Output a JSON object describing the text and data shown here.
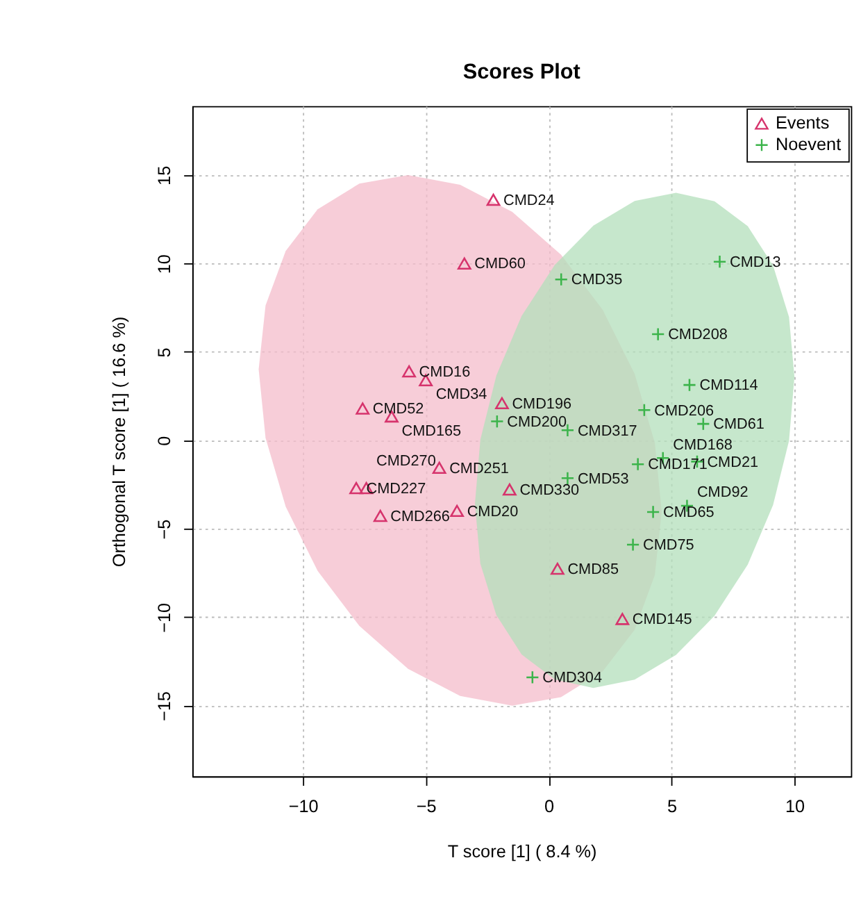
{
  "chart_data": {
    "type": "scatter",
    "title": "Scores Plot",
    "xlabel": "T score [1] ( 8.4 %)",
    "ylabel": "Orthogonal T score [1] ( 16.6 %)",
    "xlim": [
      -14.5,
      12.3
    ],
    "ylim": [
      -19,
      18.9
    ],
    "xticks": [
      -10,
      -5,
      0,
      5,
      10
    ],
    "yticks": [
      -15,
      -10,
      -5,
      0,
      5,
      10,
      15
    ],
    "grid": true,
    "legend": "top right",
    "series": [
      {
        "type": "area",
        "color": "#f4bccb",
        "x": [
          -11.8,
          -11.52,
          -10.7,
          -9.4,
          -7.7,
          -5.72,
          -3.6,
          -1.48,
          0.5,
          2.2,
          3.5,
          4.32,
          4.6,
          4.32,
          3.5,
          2.2,
          0.5,
          -1.48,
          -3.6,
          -5.72,
          -7.7,
          -9.4,
          -10.7,
          -11.52
        ],
        "values": [
          4.02,
          7.62,
          10.71,
          13.06,
          14.52,
          15.0,
          14.45,
          12.92,
          10.5,
          7.38,
          3.75,
          -0.14,
          -4.02,
          -7.62,
          -10.71,
          -13.06,
          -14.52,
          -15.0,
          -14.45,
          -12.92,
          -10.5,
          -7.38,
          -3.75,
          0.14
        ]
      },
      {
        "type": "area",
        "color": "#b3dfbb",
        "x": [
          -3.0,
          -2.78,
          -2.13,
          -1.1,
          0.25,
          1.82,
          3.5,
          5.18,
          6.75,
          8.1,
          9.13,
          9.78,
          10.0,
          9.78,
          9.13,
          8.1,
          6.75,
          5.18,
          3.5,
          1.82,
          0.25,
          -1.1,
          -2.13,
          -2.78
        ],
        "values": [
          -3.59,
          0.03,
          3.66,
          7.03,
          9.92,
          12.14,
          13.53,
          14.0,
          13.52,
          12.11,
          9.88,
          6.97,
          3.59,
          -0.03,
          -3.66,
          -7.03,
          -9.92,
          -12.14,
          -13.53,
          -14.0,
          -13.52,
          -12.11,
          -9.88,
          -6.97
        ]
      },
      {
        "name": "Events",
        "color": "#d6336c",
        "marker": "triangle",
        "x": [
          -2.25,
          -3.43,
          -5.68,
          -5.0,
          -7.57,
          -6.39,
          -1.9,
          -4.45,
          -7.83,
          -7.42,
          -6.85,
          -3.73,
          -1.59,
          0.36,
          3.0
        ],
        "values": [
          13.6,
          10.0,
          3.9,
          3.4,
          1.8,
          1.35,
          2.1,
          -1.55,
          -2.7,
          -2.7,
          -4.27,
          -3.99,
          -2.78,
          -7.26,
          -10.1
        ]
      },
      {
        "name": "Noevent",
        "color": "#3cb44b",
        "marker": "cross",
        "x": [
          0.51,
          6.96,
          4.45,
          5.73,
          3.89,
          6.29,
          -2.1,
          0.77,
          0.77,
          3.63,
          4.65,
          6.04,
          4.25,
          5.63,
          3.43,
          -0.66
        ],
        "values": [
          9.1,
          10.1,
          6.0,
          3.13,
          1.71,
          0.93,
          1.07,
          0.57,
          -2.14,
          -1.35,
          -1.0,
          -1.2,
          -4.05,
          -3.7,
          -5.9,
          -13.4
        ]
      }
    ],
    "annotations": [
      {
        "text": "CMD24",
        "x": -2.25,
        "y": 13.6
      },
      {
        "text": "CMD60",
        "x": -3.43,
        "y": 10.0
      },
      {
        "text": "CMD16",
        "x": -5.68,
        "y": 3.9
      },
      {
        "text": "CMD34",
        "x": -5.0,
        "y": 3.4
      },
      {
        "text": "CMD52",
        "x": -7.57,
        "y": 1.8
      },
      {
        "text": "CMD165",
        "x": -6.39,
        "y": 1.35
      },
      {
        "text": "CMD196",
        "x": -1.9,
        "y": 2.1
      },
      {
        "text": "CMD251",
        "x": -4.45,
        "y": -1.55
      },
      {
        "text": "CMD227",
        "x": -7.83,
        "y": -2.7
      },
      {
        "text": "CMD270",
        "x": -7.42,
        "y": -2.7
      },
      {
        "text": "CMD266",
        "x": -6.85,
        "y": -4.27
      },
      {
        "text": "CMD20",
        "x": -3.73,
        "y": -3.99
      },
      {
        "text": "CMD330",
        "x": -1.59,
        "y": -2.78
      },
      {
        "text": "CMD85",
        "x": 0.36,
        "y": -7.26
      },
      {
        "text": "CMD145",
        "x": 3.0,
        "y": -10.1
      },
      {
        "text": "CMD35",
        "x": 0.51,
        "y": 9.1
      },
      {
        "text": "CMD13",
        "x": 6.96,
        "y": 10.1
      },
      {
        "text": "CMD208",
        "x": 4.45,
        "y": 6.0
      },
      {
        "text": "CMD114",
        "x": 5.73,
        "y": 3.13
      },
      {
        "text": "CMD206",
        "x": 3.89,
        "y": 1.71
      },
      {
        "text": "CMD61",
        "x": 6.29,
        "y": 0.93
      },
      {
        "text": "CMD200",
        "x": -2.1,
        "y": 1.07
      },
      {
        "text": "CMD317",
        "x": 0.77,
        "y": 0.57
      },
      {
        "text": "CMD53",
        "x": 0.77,
        "y": -2.14
      },
      {
        "text": "CMD171",
        "x": 3.63,
        "y": -1.35
      },
      {
        "text": "CMD168",
        "x": 4.65,
        "y": -1.0
      },
      {
        "text": "CMD21",
        "x": 6.04,
        "y": -1.2
      },
      {
        "text": "CMD65",
        "x": 4.25,
        "y": -4.05
      },
      {
        "text": "CMD92",
        "x": 5.63,
        "y": -3.7
      },
      {
        "text": "CMD75",
        "x": 3.43,
        "y": -5.9
      },
      {
        "text": "CMD304",
        "x": -0.66,
        "y": -13.4
      }
    ]
  }
}
